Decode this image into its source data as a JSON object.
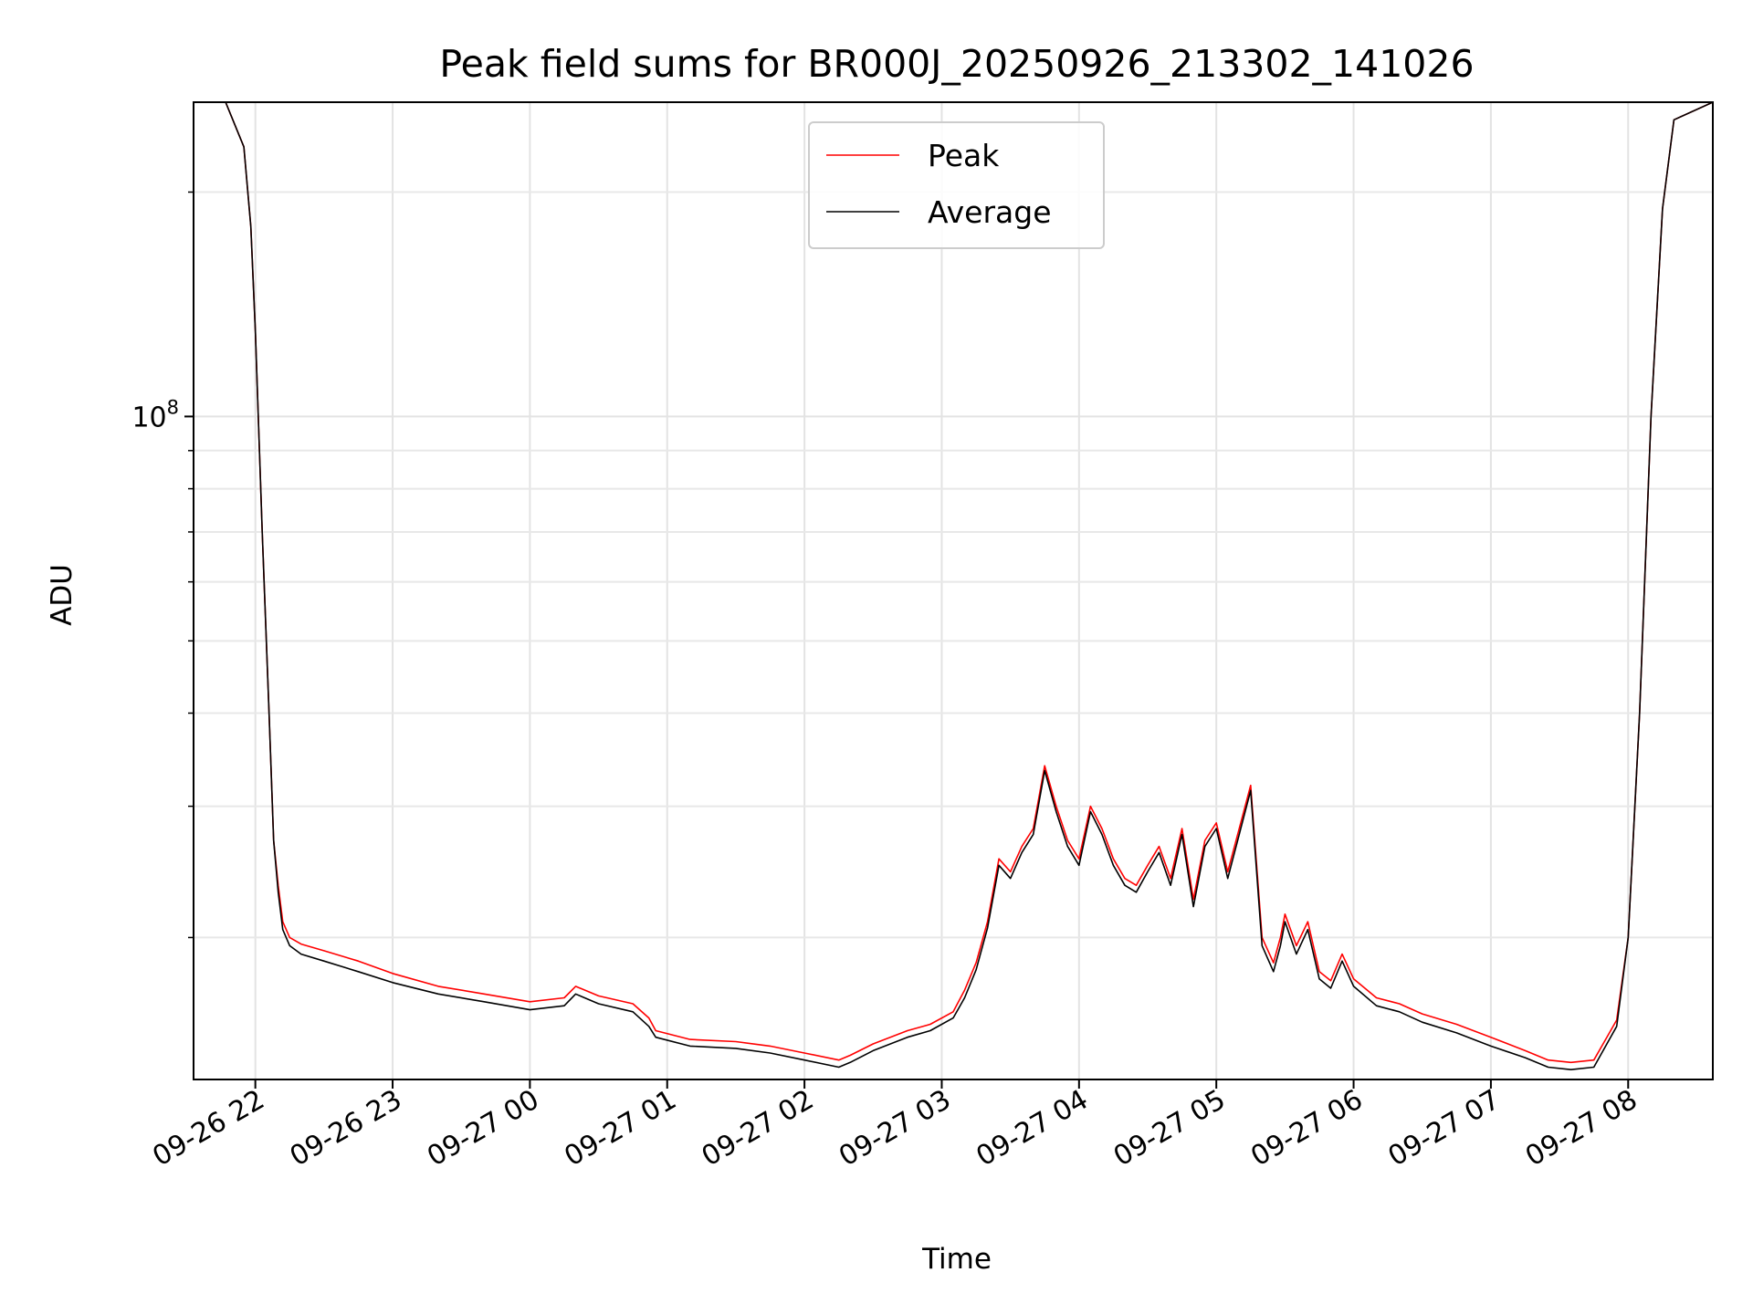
{
  "chart_data": {
    "type": "line",
    "title": "Peak field sums for BR000J_20250926_213302_141026",
    "xlabel": "Time",
    "ylabel": "ADU",
    "y_scale": "log",
    "y_tick_label": {
      "base": "10",
      "exp": "8"
    },
    "xlim": [
      "2025-09-26 21:33",
      "2025-09-27 08:37"
    ],
    "ylim": [
      12900000,
      264000000
    ],
    "grid": true,
    "legend_position": "upper center",
    "x_tick_labels": [
      "09-26 22",
      "09-26 23",
      "09-27 00",
      "09-27 01",
      "09-27 02",
      "09-27 03",
      "09-27 04",
      "09-27 05",
      "09-27 06",
      "09-27 07",
      "09-27 08"
    ],
    "x_ticks": [
      "2025-09-26 22:00",
      "2025-09-26 23:00",
      "2025-09-27 00:00",
      "2025-09-27 01:00",
      "2025-09-27 02:00",
      "2025-09-27 03:00",
      "2025-09-27 04:00",
      "2025-09-27 05:00",
      "2025-09-27 06:00",
      "2025-09-27 07:00",
      "2025-09-27 08:00"
    ],
    "series": [
      {
        "name": "Peak",
        "color": "#ff0000",
        "x": [
          "2025-09-26 21:33",
          "2025-09-26 21:47",
          "2025-09-26 21:55",
          "2025-09-26 21:58",
          "2025-09-26 22:00",
          "2025-09-26 22:03",
          "2025-09-26 22:06",
          "2025-09-26 22:08",
          "2025-09-26 22:10",
          "2025-09-26 22:12",
          "2025-09-26 22:15",
          "2025-09-26 22:20",
          "2025-09-26 22:30",
          "2025-09-26 22:45",
          "2025-09-26 23:00",
          "2025-09-26 23:20",
          "2025-09-26 23:40",
          "2025-09-27 00:00",
          "2025-09-27 00:15",
          "2025-09-27 00:20",
          "2025-09-27 00:30",
          "2025-09-27 00:45",
          "2025-09-27 00:52",
          "2025-09-27 00:55",
          "2025-09-27 01:10",
          "2025-09-27 01:30",
          "2025-09-27 01:45",
          "2025-09-27 02:00",
          "2025-09-27 02:15",
          "2025-09-27 02:20",
          "2025-09-27 02:30",
          "2025-09-27 02:45",
          "2025-09-27 02:55",
          "2025-09-27 03:05",
          "2025-09-27 03:10",
          "2025-09-27 03:15",
          "2025-09-27 03:20",
          "2025-09-27 03:25",
          "2025-09-27 03:30",
          "2025-09-27 03:35",
          "2025-09-27 03:40",
          "2025-09-27 03:45",
          "2025-09-27 03:50",
          "2025-09-27 03:55",
          "2025-09-27 04:00",
          "2025-09-27 04:05",
          "2025-09-27 04:10",
          "2025-09-27 04:15",
          "2025-09-27 04:20",
          "2025-09-27 04:25",
          "2025-09-27 04:30",
          "2025-09-27 04:35",
          "2025-09-27 04:40",
          "2025-09-27 04:45",
          "2025-09-27 04:50",
          "2025-09-27 04:55",
          "2025-09-27 05:00",
          "2025-09-27 05:05",
          "2025-09-27 05:10",
          "2025-09-27 05:15",
          "2025-09-27 05:20",
          "2025-09-27 05:25",
          "2025-09-27 05:28",
          "2025-09-27 05:30",
          "2025-09-27 05:35",
          "2025-09-27 05:40",
          "2025-09-27 05:45",
          "2025-09-27 05:50",
          "2025-09-27 05:55",
          "2025-09-27 06:00",
          "2025-09-27 06:10",
          "2025-09-27 06:20",
          "2025-09-27 06:30",
          "2025-09-27 06:45",
          "2025-09-27 07:00",
          "2025-09-27 07:15",
          "2025-09-27 07:25",
          "2025-09-27 07:35",
          "2025-09-27 07:45",
          "2025-09-27 07:55",
          "2025-09-27 08:00",
          "2025-09-27 08:05",
          "2025-09-27 08:10",
          "2025-09-27 08:15",
          "2025-09-27 08:20",
          "2025-09-27 08:37"
        ],
        "values": [
          264000000,
          264000000,
          230000000,
          180000000,
          130000000,
          70000000,
          40000000,
          27000000,
          23500000,
          21000000,
          20000000,
          19600000,
          19200000,
          18600000,
          17900000,
          17200000,
          16800000,
          16400000,
          16600000,
          17200000,
          16700000,
          16300000,
          15600000,
          15000000,
          14600000,
          14500000,
          14300000,
          14000000,
          13700000,
          13900000,
          14400000,
          15000000,
          15300000,
          15900000,
          17000000,
          18500000,
          21000000,
          25500000,
          24500000,
          26500000,
          28000000,
          34000000,
          30000000,
          27000000,
          25500000,
          30000000,
          28000000,
          25500000,
          24000000,
          23500000,
          25000000,
          26500000,
          24000000,
          28000000,
          22500000,
          27000000,
          28500000,
          24500000,
          28000000,
          32000000,
          20000000,
          18500000,
          20000000,
          21500000,
          19500000,
          21000000,
          18000000,
          17500000,
          19000000,
          17600000,
          16600000,
          16300000,
          15800000,
          15300000,
          14700000,
          14100000,
          13700000,
          13600000,
          13700000,
          15500000,
          20000000,
          40000000,
          100000000,
          190000000,
          250000000,
          264000000
        ]
      },
      {
        "name": "Average",
        "color": "#000000",
        "x": [
          "2025-09-26 21:33",
          "2025-09-26 21:47",
          "2025-09-26 21:55",
          "2025-09-26 21:58",
          "2025-09-26 22:00",
          "2025-09-26 22:03",
          "2025-09-26 22:06",
          "2025-09-26 22:08",
          "2025-09-26 22:10",
          "2025-09-26 22:12",
          "2025-09-26 22:15",
          "2025-09-26 22:20",
          "2025-09-26 22:30",
          "2025-09-26 22:45",
          "2025-09-26 23:00",
          "2025-09-26 23:20",
          "2025-09-26 23:40",
          "2025-09-27 00:00",
          "2025-09-27 00:15",
          "2025-09-27 00:20",
          "2025-09-27 00:30",
          "2025-09-27 00:45",
          "2025-09-27 00:52",
          "2025-09-27 00:55",
          "2025-09-27 01:10",
          "2025-09-27 01:30",
          "2025-09-27 01:45",
          "2025-09-27 02:00",
          "2025-09-27 02:15",
          "2025-09-27 02:20",
          "2025-09-27 02:30",
          "2025-09-27 02:45",
          "2025-09-27 02:55",
          "2025-09-27 03:05",
          "2025-09-27 03:10",
          "2025-09-27 03:15",
          "2025-09-27 03:20",
          "2025-09-27 03:25",
          "2025-09-27 03:30",
          "2025-09-27 03:35",
          "2025-09-27 03:40",
          "2025-09-27 03:45",
          "2025-09-27 03:50",
          "2025-09-27 03:55",
          "2025-09-27 04:00",
          "2025-09-27 04:05",
          "2025-09-27 04:10",
          "2025-09-27 04:15",
          "2025-09-27 04:20",
          "2025-09-27 04:25",
          "2025-09-27 04:30",
          "2025-09-27 04:35",
          "2025-09-27 04:40",
          "2025-09-27 04:45",
          "2025-09-27 04:50",
          "2025-09-27 04:55",
          "2025-09-27 05:00",
          "2025-09-27 05:05",
          "2025-09-27 05:10",
          "2025-09-27 05:15",
          "2025-09-27 05:20",
          "2025-09-27 05:25",
          "2025-09-27 05:28",
          "2025-09-27 05:30",
          "2025-09-27 05:35",
          "2025-09-27 05:40",
          "2025-09-27 05:45",
          "2025-09-27 05:50",
          "2025-09-27 05:55",
          "2025-09-27 06:00",
          "2025-09-27 06:10",
          "2025-09-27 06:20",
          "2025-09-27 06:30",
          "2025-09-27 06:45",
          "2025-09-27 07:00",
          "2025-09-27 07:15",
          "2025-09-27 07:25",
          "2025-09-27 07:35",
          "2025-09-27 07:45",
          "2025-09-27 07:55",
          "2025-09-27 08:00",
          "2025-09-27 08:05",
          "2025-09-27 08:10",
          "2025-09-27 08:15",
          "2025-09-27 08:20",
          "2025-09-27 08:37"
        ],
        "values": [
          264000000,
          264000000,
          230000000,
          180000000,
          130000000,
          70000000,
          40000000,
          27000000,
          23000000,
          20500000,
          19500000,
          19000000,
          18600000,
          18000000,
          17400000,
          16800000,
          16400000,
          16000000,
          16200000,
          16800000,
          16300000,
          15900000,
          15200000,
          14700000,
          14300000,
          14200000,
          14000000,
          13700000,
          13400000,
          13600000,
          14100000,
          14700000,
          15000000,
          15600000,
          16600000,
          18100000,
          20600000,
          25000000,
          24000000,
          26000000,
          27500000,
          33500000,
          29500000,
          26500000,
          25000000,
          29500000,
          27500000,
          25000000,
          23500000,
          23000000,
          24500000,
          26000000,
          23500000,
          27500000,
          22000000,
          26500000,
          28000000,
          24000000,
          27500000,
          31500000,
          19500000,
          18000000,
          19500000,
          21000000,
          19000000,
          20500000,
          17600000,
          17100000,
          18600000,
          17200000,
          16200000,
          15900000,
          15400000,
          14900000,
          14300000,
          13800000,
          13400000,
          13300000,
          13400000,
          15200000,
          20000000,
          40000000,
          100000000,
          190000000,
          250000000,
          264000000
        ]
      }
    ]
  }
}
